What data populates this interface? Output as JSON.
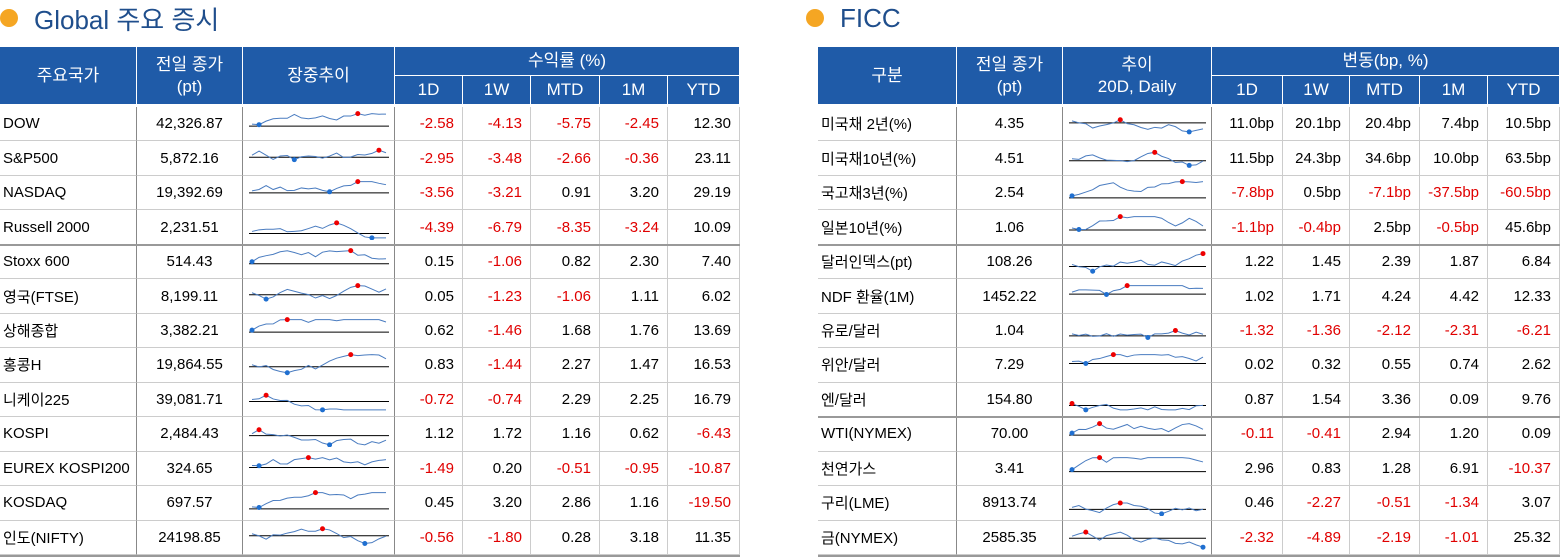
{
  "panels": [
    {
      "title": "Global 주요 증시",
      "headers": {
        "name": "주요국가",
        "close": "전일 종가",
        "close_unit": "(pt)",
        "trend": "장중추이",
        "group": "수익률 (%)",
        "periods": [
          "1D",
          "1W",
          "MTD",
          "1M",
          "YTD"
        ]
      },
      "rows": [
        [
          "DOW",
          "42,326.87",
          "-2.58",
          "-4.13",
          "-5.75",
          "-2.45",
          "12.30"
        ],
        [
          "S&P500",
          "5,872.16",
          "-2.95",
          "-3.48",
          "-2.66",
          "-0.36",
          "23.11"
        ],
        [
          "NASDAQ",
          "19,392.69",
          "-3.56",
          "-3.21",
          "0.91",
          "3.20",
          "29.19"
        ],
        [
          "Russell 2000",
          "2,231.51",
          "-4.39",
          "-6.79",
          "-8.35",
          "-3.24",
          "10.09"
        ],
        [
          "Stoxx 600",
          "514.43",
          "0.15",
          "-1.06",
          "0.82",
          "2.30",
          "7.40"
        ],
        [
          "영국(FTSE)",
          "8,199.11",
          "0.05",
          "-1.23",
          "-1.06",
          "1.11",
          "6.02"
        ],
        [
          "상해종합",
          "3,382.21",
          "0.62",
          "-1.46",
          "1.68",
          "1.76",
          "13.69"
        ],
        [
          "홍콩H",
          "19,864.55",
          "0.83",
          "-1.44",
          "2.27",
          "1.47",
          "16.53"
        ],
        [
          "니케이225",
          "39,081.71",
          "-0.72",
          "-0.74",
          "2.29",
          "2.25",
          "16.79"
        ],
        [
          "KOSPI",
          "2,484.43",
          "1.12",
          "1.72",
          "1.16",
          "0.62",
          "-6.43"
        ],
        [
          "EUREX KOSPI200",
          "324.65",
          "-1.49",
          "0.20",
          "-0.51",
          "-0.95",
          "-10.87"
        ],
        [
          "KOSDAQ",
          "697.57",
          "0.45",
          "3.20",
          "2.86",
          "1.16",
          "-19.50"
        ],
        [
          "인도(NIFTY)",
          "24198.85",
          "-0.56",
          "-1.80",
          "0.28",
          "3.18",
          "11.35"
        ]
      ]
    },
    {
      "title": "FICC",
      "headers": {
        "name": "구분",
        "close": "전일 종가",
        "close_unit": "(pt)",
        "trend": "추이",
        "trend_sub": "20D, Daily",
        "group": "변동(bp, %)",
        "periods": [
          "1D",
          "1W",
          "MTD",
          "1M",
          "YTD"
        ]
      },
      "rows": [
        [
          "미국채 2년(%)",
          "4.35",
          "11.0bp",
          "20.1bp",
          "20.4bp",
          "7.4bp",
          "10.5bp"
        ],
        [
          "미국채10년(%)",
          "4.51",
          "11.5bp",
          "24.3bp",
          "34.6bp",
          "10.0bp",
          "63.5bp"
        ],
        [
          "국고채3년(%)",
          "2.54",
          "-7.8bp",
          "0.5bp",
          "-7.1bp",
          "-37.5bp",
          "-60.5bp"
        ],
        [
          "일본10년(%)",
          "1.06",
          "-1.1bp",
          "-0.4bp",
          "2.5bp",
          "-0.5bp",
          "45.6bp"
        ],
        [
          "달러인덱스(pt)",
          "108.26",
          "1.22",
          "1.45",
          "2.39",
          "1.87",
          "6.84"
        ],
        [
          "NDF 환율(1M)",
          "1452.22",
          "1.02",
          "1.71",
          "4.24",
          "4.42",
          "12.33"
        ],
        [
          "유로/달러",
          "1.04",
          "-1.32",
          "-1.36",
          "-2.12",
          "-2.31",
          "-6.21"
        ],
        [
          "위안/달러",
          "7.29",
          "0.02",
          "0.32",
          "0.55",
          "0.74",
          "2.62"
        ],
        [
          "엔/달러",
          "154.80",
          "0.87",
          "1.54",
          "3.36",
          "0.09",
          "9.76"
        ],
        [
          "WTI(NYMEX)",
          "70.00",
          "-0.11",
          "-0.41",
          "2.94",
          "1.20",
          "0.09"
        ],
        [
          "천연가스",
          "3.41",
          "2.96",
          "0.83",
          "1.28",
          "6.91",
          "-10.37"
        ],
        [
          "구리(LME)",
          "8913.74",
          "0.46",
          "-2.27",
          "-0.51",
          "-1.34",
          "3.07"
        ],
        [
          "금(NYMEX)",
          "2585.35",
          "-2.32",
          "-4.89",
          "-2.19",
          "-1.01",
          "25.32"
        ]
      ]
    }
  ]
}
